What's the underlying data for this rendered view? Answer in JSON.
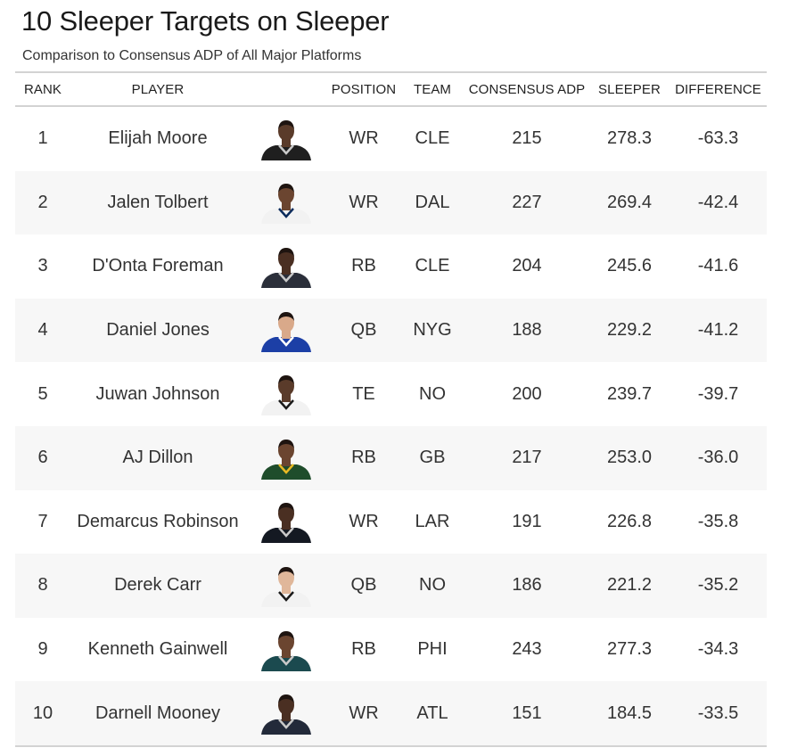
{
  "title": "10 Sleeper Targets on Sleeper",
  "subtitle": "Comparison to Consensus ADP of All Major Platforms",
  "columns": {
    "rank": "RANK",
    "player": "PLAYER",
    "position": "POSITION",
    "team": "TEAM",
    "adp": "CONSENSUS ADP",
    "sleeper": "SLEEPER",
    "difference": "DIFFERENCE"
  },
  "chart_data": {
    "type": "table",
    "title": "10 Sleeper Targets on Sleeper",
    "subtitle": "Comparison to Consensus ADP of All Major Platforms",
    "rows": [
      {
        "rank": "1",
        "player": "Elijah Moore",
        "position": "WR",
        "team": "CLE",
        "adp": "215",
        "sleeper": "278.3",
        "difference": "-63.3",
        "skin": "#5a3b2a",
        "jersey": "#1f1f1f",
        "trim": "#c9c9c9"
      },
      {
        "rank": "2",
        "player": "Jalen Tolbert",
        "position": "WR",
        "team": "DAL",
        "adp": "227",
        "sleeper": "269.4",
        "difference": "-42.4",
        "skin": "#6b4530",
        "jersey": "#f2f2f2",
        "trim": "#0b2b5c"
      },
      {
        "rank": "3",
        "player": "D'Onta Foreman",
        "position": "RB",
        "team": "CLE",
        "adp": "204",
        "sleeper": "245.6",
        "difference": "-41.6",
        "skin": "#4a2f22",
        "jersey": "#2b2f3a",
        "trim": "#c9c9c9"
      },
      {
        "rank": "4",
        "player": "Daniel Jones",
        "position": "QB",
        "team": "NYG",
        "adp": "188",
        "sleeper": "229.2",
        "difference": "-41.2",
        "skin": "#d9a98a",
        "jersey": "#1c3fa6",
        "trim": "#ffffff"
      },
      {
        "rank": "5",
        "player": "Juwan Johnson",
        "position": "TE",
        "team": "NO",
        "adp": "200",
        "sleeper": "239.7",
        "difference": "-39.7",
        "skin": "#5a3b2a",
        "jersey": "#f2f2f2",
        "trim": "#1a1a1a"
      },
      {
        "rank": "6",
        "player": "AJ Dillon",
        "position": "RB",
        "team": "GB",
        "adp": "217",
        "sleeper": "253.0",
        "difference": "-36.0",
        "skin": "#6b4530",
        "jersey": "#1f4d2b",
        "trim": "#e8b923"
      },
      {
        "rank": "7",
        "player": "Demarcus Robinson",
        "position": "WR",
        "team": "LAR",
        "adp": "191",
        "sleeper": "226.8",
        "difference": "-35.8",
        "skin": "#4a2f22",
        "jersey": "#141922",
        "trim": "#c9c9c9"
      },
      {
        "rank": "8",
        "player": "Derek Carr",
        "position": "QB",
        "team": "NO",
        "adp": "186",
        "sleeper": "221.2",
        "difference": "-35.2",
        "skin": "#e0b79a",
        "jersey": "#f2f2f2",
        "trim": "#1a1a1a"
      },
      {
        "rank": "9",
        "player": "Kenneth Gainwell",
        "position": "RB",
        "team": "PHI",
        "adp": "243",
        "sleeper": "277.3",
        "difference": "-34.3",
        "skin": "#6b4530",
        "jersey": "#1b4a4f",
        "trim": "#c9c9c9"
      },
      {
        "rank": "10",
        "player": "Darnell Mooney",
        "position": "WR",
        "team": "ATL",
        "adp": "151",
        "sleeper": "184.5",
        "difference": "-33.5",
        "skin": "#4a2f22",
        "jersey": "#232a3a",
        "trim": "#c9c9c9"
      }
    ]
  }
}
